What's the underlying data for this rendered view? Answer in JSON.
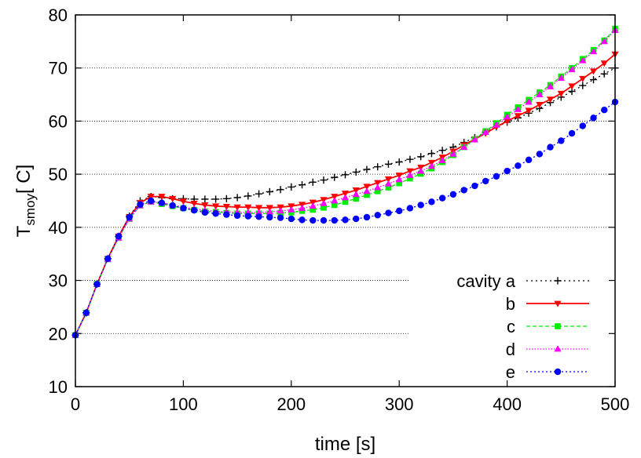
{
  "chart_data": {
    "type": "line",
    "xlabel": "time [s]",
    "ylabel_main": "T",
    "ylabel_sub": "smoy",
    "ylabel_rest": "[ C]",
    "xlim": [
      0,
      500
    ],
    "ylim": [
      10,
      80
    ],
    "xticks": [
      "0",
      "100",
      "200",
      "300",
      "400",
      "500"
    ],
    "yticks": [
      "10",
      "20",
      "30",
      "40",
      "50",
      "60",
      "70",
      "80"
    ],
    "grid": "horizontal dotted",
    "legend_position": "bottom-right",
    "series": [
      {
        "name": "cavity a",
        "color": "#000000",
        "dash": "2,4",
        "marker": "plus",
        "x": [
          0,
          10,
          20,
          30,
          40,
          50,
          60,
          70,
          80,
          90,
          100,
          110,
          120,
          130,
          140,
          150,
          160,
          170,
          180,
          190,
          200,
          210,
          220,
          230,
          240,
          250,
          260,
          270,
          280,
          290,
          300,
          310,
          320,
          330,
          340,
          350,
          360,
          370,
          380,
          390,
          400,
          410,
          420,
          430,
          440,
          450,
          460,
          470,
          480,
          490,
          500
        ],
        "y": [
          19.7,
          23.9,
          29.3,
          34.1,
          38.3,
          42.1,
          45.0,
          45.8,
          45.6,
          45.4,
          45.4,
          45.3,
          45.3,
          45.3,
          45.4,
          45.6,
          45.9,
          46.3,
          46.7,
          47.1,
          47.6,
          48.0,
          48.5,
          48.9,
          49.4,
          49.9,
          50.4,
          50.9,
          51.4,
          51.9,
          52.3,
          52.8,
          53.3,
          53.9,
          54.5,
          55.1,
          56.0,
          56.9,
          57.9,
          58.9,
          59.8,
          60.6,
          61.5,
          62.4,
          63.5,
          64.5,
          65.6,
          66.7,
          67.8,
          68.9,
          70.0
        ]
      },
      {
        "name": "b",
        "color": "#ff0000",
        "dash": "",
        "marker": "triangle-down",
        "x": [
          0,
          10,
          20,
          30,
          40,
          50,
          60,
          70,
          80,
          90,
          100,
          110,
          120,
          130,
          140,
          150,
          160,
          170,
          180,
          190,
          200,
          210,
          220,
          230,
          240,
          250,
          260,
          270,
          280,
          290,
          300,
          310,
          320,
          330,
          340,
          350,
          360,
          370,
          380,
          390,
          400,
          410,
          420,
          430,
          440,
          450,
          460,
          470,
          480,
          490,
          500
        ],
        "y": [
          19.7,
          23.9,
          29.3,
          34.1,
          38.3,
          42.0,
          44.6,
          45.8,
          45.8,
          45.4,
          44.9,
          44.5,
          44.2,
          44.0,
          43.9,
          43.8,
          43.8,
          43.7,
          43.7,
          43.8,
          44.0,
          44.3,
          44.7,
          45.2,
          45.8,
          46.4,
          47.0,
          47.7,
          48.4,
          49.1,
          49.8,
          50.6,
          51.3,
          52.2,
          53.2,
          54.3,
          55.5,
          56.6,
          57.7,
          58.9,
          60.0,
          61.0,
          62.0,
          63.1,
          64.1,
          65.2,
          66.6,
          68.0,
          69.4,
          70.9,
          72.6
        ]
      },
      {
        "name": "c",
        "color": "#00ee00",
        "dash": "5,3",
        "marker": "square",
        "x": [
          0,
          10,
          20,
          30,
          40,
          50,
          60,
          70,
          80,
          90,
          100,
          110,
          120,
          130,
          140,
          150,
          160,
          170,
          180,
          190,
          200,
          210,
          220,
          230,
          240,
          250,
          260,
          270,
          280,
          290,
          300,
          310,
          320,
          330,
          340,
          350,
          360,
          370,
          380,
          390,
          400,
          410,
          420,
          430,
          440,
          450,
          460,
          470,
          480,
          490,
          500
        ],
        "y": [
          19.7,
          23.9,
          29.3,
          34.0,
          38.0,
          41.6,
          44.1,
          44.8,
          44.4,
          44.0,
          43.6,
          43.3,
          43.0,
          42.9,
          42.7,
          42.6,
          42.6,
          42.6,
          42.6,
          42.7,
          42.8,
          43.1,
          43.3,
          43.7,
          44.2,
          44.8,
          45.4,
          46.1,
          46.8,
          47.5,
          48.3,
          49.2,
          50.1,
          51.1,
          52.3,
          53.6,
          55.1,
          56.6,
          58.1,
          59.6,
          61.2,
          62.6,
          64.0,
          65.4,
          66.8,
          68.4,
          70.0,
          71.7,
          73.4,
          75.2,
          77.4
        ]
      },
      {
        "name": "d",
        "color": "#ff00ff",
        "dash": "1.5,2",
        "marker": "triangle-up",
        "x": [
          0,
          10,
          20,
          30,
          40,
          50,
          60,
          70,
          80,
          90,
          100,
          110,
          120,
          130,
          140,
          150,
          160,
          170,
          180,
          190,
          200,
          210,
          220,
          230,
          240,
          250,
          260,
          270,
          280,
          290,
          300,
          310,
          320,
          330,
          340,
          350,
          360,
          370,
          380,
          390,
          400,
          410,
          420,
          430,
          440,
          450,
          460,
          470,
          480,
          490,
          500
        ],
        "y": [
          19.7,
          23.9,
          29.3,
          34.0,
          38.0,
          41.6,
          44.1,
          44.8,
          44.6,
          44.2,
          43.8,
          43.5,
          43.2,
          43.0,
          42.9,
          42.8,
          42.8,
          42.8,
          42.9,
          43.1,
          43.3,
          43.6,
          44.0,
          44.5,
          45.0,
          45.6,
          46.2,
          46.8,
          47.5,
          48.2,
          49.0,
          49.8,
          50.6,
          51.5,
          52.6,
          53.8,
          55.1,
          56.5,
          57.9,
          59.3,
          60.8,
          62.2,
          63.6,
          65.0,
          66.5,
          68.1,
          69.7,
          71.4,
          73.1,
          75.0,
          77.1
        ]
      },
      {
        "name": "e",
        "color": "#0000ff",
        "dash": "2,3",
        "marker": "circle",
        "x": [
          0,
          10,
          20,
          30,
          40,
          50,
          60,
          70,
          80,
          90,
          100,
          110,
          120,
          130,
          140,
          150,
          160,
          170,
          180,
          190,
          200,
          210,
          220,
          230,
          240,
          250,
          260,
          270,
          280,
          290,
          300,
          310,
          320,
          330,
          340,
          350,
          360,
          370,
          380,
          390,
          400,
          410,
          420,
          430,
          440,
          450,
          460,
          470,
          480,
          490,
          500
        ],
        "y": [
          19.7,
          23.9,
          29.3,
          34.1,
          38.3,
          41.9,
          44.3,
          45.0,
          44.6,
          44.1,
          43.6,
          43.2,
          42.8,
          42.6,
          42.4,
          42.2,
          42.1,
          42.0,
          41.9,
          41.8,
          41.6,
          41.4,
          41.3,
          41.3,
          41.3,
          41.4,
          41.6,
          41.9,
          42.3,
          42.7,
          43.1,
          43.6,
          44.2,
          44.8,
          45.5,
          46.2,
          47.0,
          47.8,
          48.7,
          49.6,
          50.6,
          51.6,
          52.7,
          53.8,
          55.1,
          56.3,
          57.7,
          59.1,
          60.6,
          62.1,
          63.6
        ]
      }
    ]
  }
}
